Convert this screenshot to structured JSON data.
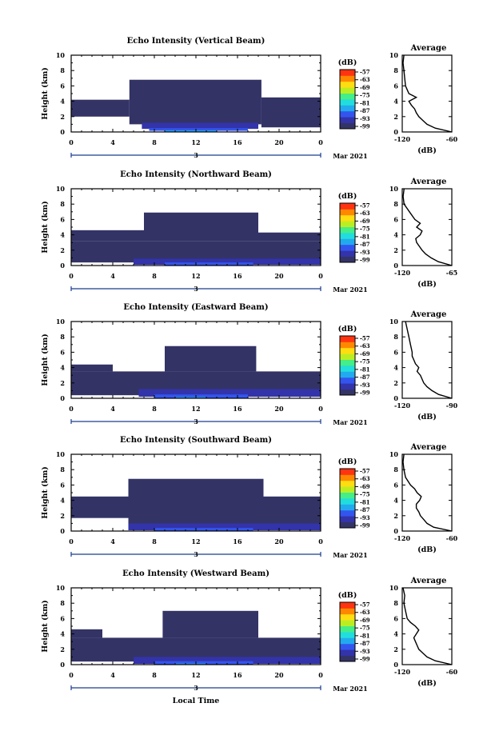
{
  "figure": {
    "xlabel": "Local Time",
    "date_label": "Mar 2021",
    "day_label": "3",
    "colorbar_unit": "(dB)",
    "avg_title": "Average",
    "avg_xlabel": "(dB)"
  },
  "palette": [
    "#333366",
    "#3333aa",
    "#3355ee",
    "#22aaee",
    "#22dddd",
    "#44ee88",
    "#bbee22",
    "#ffdd11",
    "#ff8800",
    "#ff3311"
  ],
  "chart_data": [
    {
      "type": "heatmap",
      "title": "Echo Intensity (Vertical Beam)",
      "xlabel": "",
      "ylabel": "Height (km)",
      "x_ticks": [
        "0",
        "4",
        "8",
        "12",
        "16",
        "20",
        "0"
      ],
      "xlim": [
        0,
        24
      ],
      "y_ticks": [
        "0",
        "2",
        "4",
        "6",
        "8",
        "10"
      ],
      "ylim": [
        0,
        10
      ],
      "colorbar_ticks": [
        "-57",
        "-63",
        "-69",
        "-75",
        "-81",
        "-87",
        "-93",
        "-99"
      ],
      "regions": [
        {
          "x": [
            0,
            5.6
          ],
          "y": [
            2.0,
            4.2
          ],
          "level": 0
        },
        {
          "x": [
            5.6,
            18.3
          ],
          "y": [
            1.0,
            6.8
          ],
          "level": 0
        },
        {
          "x": [
            18.3,
            24
          ],
          "y": [
            0.6,
            4.5
          ],
          "level": 0
        },
        {
          "x": [
            6.8,
            18.0
          ],
          "y": [
            0.4,
            1.2
          ],
          "level": 1
        },
        {
          "x": [
            7.5,
            17.0
          ],
          "y": [
            0.15,
            0.5
          ],
          "level": 2
        },
        {
          "x": [
            9.0,
            14.0
          ],
          "y": [
            0.0,
            0.2
          ],
          "level": 3
        }
      ],
      "avg_profile": {
        "xlim": [
          -120,
          -60
        ],
        "x_ticks": [
          "-120",
          "-60"
        ],
        "height_km": [
          0,
          0.5,
          1,
          1.5,
          2,
          2.5,
          3,
          3.5,
          4,
          4.5,
          5,
          5.5,
          6,
          7,
          8,
          9,
          10
        ],
        "db": [
          -60,
          -80,
          -90,
          -95,
          -100,
          -103,
          -105,
          -109,
          -112,
          -103,
          -112,
          -114,
          -116,
          -117,
          -118,
          -119,
          -118
        ]
      }
    },
    {
      "type": "heatmap",
      "title": "Echo Intensity (Northward Beam)",
      "xlabel": "",
      "ylabel": "Height (km)",
      "x_ticks": [
        "0",
        "4",
        "8",
        "12",
        "16",
        "20",
        "0"
      ],
      "xlim": [
        0,
        24
      ],
      "y_ticks": [
        "0",
        "2",
        "4",
        "6",
        "8",
        "10"
      ],
      "ylim": [
        0,
        10
      ],
      "colorbar_ticks": [
        "-57",
        "-63",
        "-69",
        "-75",
        "-81",
        "-87",
        "-93",
        "-99"
      ],
      "regions": [
        {
          "x": [
            0,
            24
          ],
          "y": [
            0.4,
            3.2
          ],
          "level": 0
        },
        {
          "x": [
            0,
            7.0
          ],
          "y": [
            3.2,
            4.6
          ],
          "level": 0
        },
        {
          "x": [
            7.0,
            18.0
          ],
          "y": [
            3.2,
            6.9
          ],
          "level": 0
        },
        {
          "x": [
            18.0,
            24
          ],
          "y": [
            3.2,
            4.3
          ],
          "level": 0
        },
        {
          "x": [
            6.0,
            24
          ],
          "y": [
            0.1,
            0.9
          ],
          "level": 1
        },
        {
          "x": [
            9.0,
            17.5
          ],
          "y": [
            0.0,
            0.4
          ],
          "level": 2
        }
      ],
      "avg_profile": {
        "xlim": [
          -120,
          -65
        ],
        "x_ticks": [
          "-120",
          "-65"
        ],
        "height_km": [
          0,
          0.5,
          1,
          1.5,
          2,
          2.5,
          3,
          3.5,
          4,
          4.5,
          5,
          5.5,
          6,
          7,
          8,
          9,
          10
        ],
        "db": [
          -65,
          -80,
          -88,
          -94,
          -98,
          -101,
          -104,
          -105,
          -100,
          -98,
          -104,
          -100,
          -106,
          -112,
          -118,
          -119,
          -118
        ]
      }
    },
    {
      "type": "heatmap",
      "title": "Echo Intensity (Eastward Beam)",
      "xlabel": "",
      "ylabel": "Height (km)",
      "x_ticks": [
        "0",
        "4",
        "8",
        "12",
        "16",
        "20",
        "0"
      ],
      "xlim": [
        0,
        24
      ],
      "y_ticks": [
        "0",
        "2",
        "4",
        "6",
        "8",
        "10"
      ],
      "ylim": [
        0,
        10
      ],
      "colorbar_ticks": [
        "-57",
        "-63",
        "-69",
        "-75",
        "-81",
        "-87",
        "-93",
        "-99"
      ],
      "regions": [
        {
          "x": [
            0,
            24
          ],
          "y": [
            0.4,
            3.5
          ],
          "level": 0
        },
        {
          "x": [
            0,
            4.0
          ],
          "y": [
            3.5,
            4.4
          ],
          "level": 0
        },
        {
          "x": [
            9.0,
            17.8
          ],
          "y": [
            3.5,
            6.8
          ],
          "level": 0
        },
        {
          "x": [
            6.5,
            24
          ],
          "y": [
            0.2,
            1.2
          ],
          "level": 1
        },
        {
          "x": [
            8.0,
            17.0
          ],
          "y": [
            0.0,
            0.5
          ],
          "level": 2
        },
        {
          "x": [
            10.0,
            13.0
          ],
          "y": [
            0.0,
            0.15
          ],
          "level": 3
        }
      ],
      "avg_profile": {
        "xlim": [
          -120,
          -90
        ],
        "x_ticks": [
          "-120",
          "-90"
        ],
        "height_km": [
          0,
          0.5,
          1,
          1.5,
          2,
          2.5,
          3,
          3.5,
          4,
          4.5,
          5,
          5.5,
          6,
          7,
          8,
          9,
          10
        ],
        "db": [
          -90,
          -98,
          -102,
          -105,
          -107,
          -108,
          -109,
          -111,
          -110,
          -112,
          -113,
          -114,
          -114,
          -115,
          -116,
          -117,
          -118
        ]
      }
    },
    {
      "type": "heatmap",
      "title": "Echo Intensity (Southward Beam)",
      "xlabel": "",
      "ylabel": "Height (km)",
      "x_ticks": [
        "0",
        "4",
        "8",
        "12",
        "16",
        "20",
        "0"
      ],
      "xlim": [
        0,
        24
      ],
      "y_ticks": [
        "0",
        "2",
        "4",
        "6",
        "8",
        "10"
      ],
      "ylim": [
        0,
        10
      ],
      "colorbar_ticks": [
        "-57",
        "-63",
        "-69",
        "-75",
        "-81",
        "-87",
        "-93",
        "-99"
      ],
      "regions": [
        {
          "x": [
            0,
            5.5
          ],
          "y": [
            1.7,
            4.5
          ],
          "level": 0
        },
        {
          "x": [
            5.5,
            18.5
          ],
          "y": [
            0.5,
            6.8
          ],
          "level": 0
        },
        {
          "x": [
            18.5,
            24
          ],
          "y": [
            0.5,
            4.5
          ],
          "level": 0
        },
        {
          "x": [
            5.5,
            24
          ],
          "y": [
            0.1,
            1.0
          ],
          "level": 1
        },
        {
          "x": [
            8.0,
            17.5
          ],
          "y": [
            0.0,
            0.4
          ],
          "level": 2
        }
      ],
      "avg_profile": {
        "xlim": [
          -120,
          -60
        ],
        "x_ticks": [
          "-120",
          "-60"
        ],
        "height_km": [
          0,
          0.5,
          1,
          1.5,
          2,
          2.5,
          3,
          3.5,
          4,
          4.5,
          5,
          5.5,
          6,
          7,
          8,
          9,
          10
        ],
        "db": [
          -60,
          -82,
          -90,
          -94,
          -98,
          -100,
          -103,
          -103,
          -99,
          -97,
          -102,
          -105,
          -110,
          -116,
          -118,
          -119,
          -118
        ]
      }
    },
    {
      "type": "heatmap",
      "title": "Echo Intensity (Westward Beam)",
      "xlabel": "",
      "ylabel": "Height (km)",
      "x_ticks": [
        "0",
        "4",
        "8",
        "12",
        "16",
        "20",
        "0"
      ],
      "xlim": [
        0,
        24
      ],
      "y_ticks": [
        "0",
        "2",
        "4",
        "6",
        "8",
        "10"
      ],
      "ylim": [
        0,
        10
      ],
      "colorbar_ticks": [
        "-57",
        "-63",
        "-69",
        "-75",
        "-81",
        "-87",
        "-93",
        "-99"
      ],
      "regions": [
        {
          "x": [
            0,
            24
          ],
          "y": [
            0.4,
            3.5
          ],
          "level": 0
        },
        {
          "x": [
            0,
            3.0
          ],
          "y": [
            3.5,
            4.6
          ],
          "level": 0
        },
        {
          "x": [
            8.8,
            18.0
          ],
          "y": [
            3.5,
            7.0
          ],
          "level": 0
        },
        {
          "x": [
            6.0,
            24
          ],
          "y": [
            0.1,
            1.0
          ],
          "level": 1
        },
        {
          "x": [
            8.0,
            17.5
          ],
          "y": [
            0.0,
            0.45
          ],
          "level": 2
        },
        {
          "x": [
            10.0,
            13.0
          ],
          "y": [
            0.0,
            0.15
          ],
          "level": 3
        }
      ],
      "avg_profile": {
        "xlim": [
          -120,
          -60
        ],
        "x_ticks": [
          "-120",
          "-60"
        ],
        "height_km": [
          0,
          0.5,
          1,
          1.5,
          2,
          2.5,
          3,
          3.5,
          4,
          4.5,
          5,
          5.5,
          6,
          7,
          8,
          9,
          10
        ],
        "db": [
          -60,
          -80,
          -90,
          -95,
          -100,
          -102,
          -104,
          -106,
          -103,
          -100,
          -104,
          -110,
          -114,
          -116,
          -118,
          -117,
          -119
        ]
      }
    }
  ]
}
